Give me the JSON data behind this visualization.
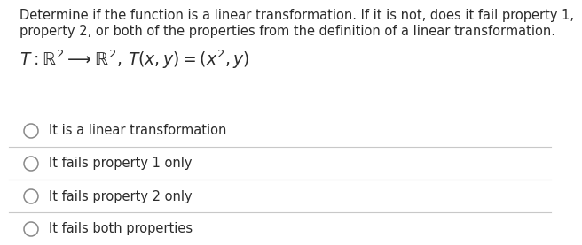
{
  "background_color": "#ffffff",
  "question_text_line1": "Determine if the function is a linear transformation. If it is not, does it fail property 1,",
  "question_text_line2": "property 2, or both of the properties from the definition of a linear transformation.",
  "formula": "$T : \\mathbb{R}^2 \\longrightarrow \\mathbb{R}^2,\\, T(x, y) = (x^2, y)$",
  "options": [
    "It is a linear transformation",
    "It fails property 1 only",
    "It fails property 2 only",
    "It fails both properties"
  ],
  "text_color": "#2b2b2b",
  "line_color": "#c8c8c8",
  "circle_color": "#888888",
  "font_size_question": 10.5,
  "font_size_formula": 13.5,
  "font_size_options": 10.5
}
